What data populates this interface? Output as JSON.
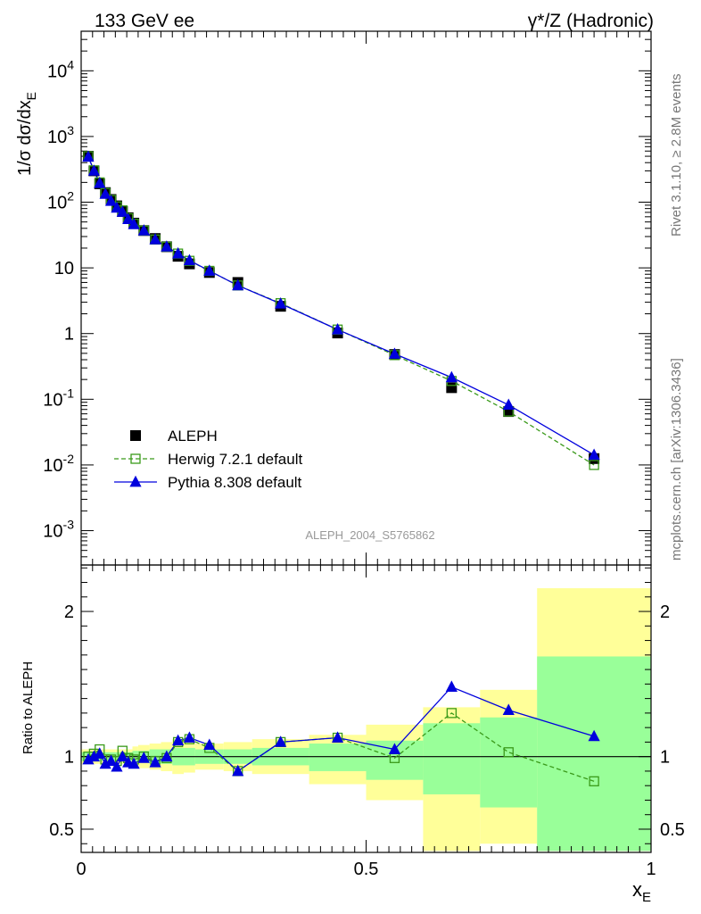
{
  "header": {
    "left": "133 GeV ee",
    "right": "γ*/Z (Hadronic)"
  },
  "side_labels": {
    "rivet": "Rivet 3.1.10, ≥ 2.8M events",
    "mcplots": "mcplots.cern.ch [arXiv:1306.3436]"
  },
  "watermark": "ALEPH_2004_S5765862",
  "colors": {
    "data": "#000000",
    "herwig": "#3a9a1a",
    "pythia": "#0000dd",
    "band_yellow": "#ffff99",
    "band_green": "#99ff99"
  },
  "chart_data": [
    {
      "type": "line",
      "name": "main-panel",
      "ylabel": "1/σ dσ/dx_E",
      "yscale": "log",
      "xlim": [
        0,
        1
      ],
      "ylim": [
        0.0003,
        40000
      ],
      "y_ticks": [
        {
          "v": 0.001,
          "label": "10^-3"
        },
        {
          "v": 0.01,
          "label": "10^-2"
        },
        {
          "v": 0.1,
          "label": "10^-1"
        },
        {
          "v": 1,
          "label": "1"
        },
        {
          "v": 10,
          "label": "10"
        },
        {
          "v": 100,
          "label": "10^2"
        },
        {
          "v": 1000,
          "label": "10^3"
        },
        {
          "v": 10000,
          "label": "10^4"
        }
      ],
      "legend": {
        "placement": "bottom-left",
        "entries": [
          "ALEPH",
          "Herwig 7.2.1 default",
          "Pythia 8.308 default"
        ]
      },
      "series": [
        {
          "name": "ALEPH",
          "style": "filled-square",
          "x": [
            0.0125,
            0.0225,
            0.0325,
            0.0425,
            0.0525,
            0.0625,
            0.0725,
            0.0825,
            0.0925,
            0.11,
            0.13,
            0.15,
            0.17,
            0.19,
            0.225,
            0.275,
            0.35,
            0.45,
            0.55,
            0.65,
            0.75,
            0.9
          ],
          "y": [
            500,
            300,
            190,
            140,
            110,
            88,
            72,
            58,
            48,
            37,
            28,
            21,
            15,
            11.5,
            8.5,
            6.0,
            2.6,
            1.02,
            0.48,
            0.15,
            0.065,
            0.0125
          ]
        },
        {
          "name": "Herwig 7.2.1 default",
          "style": "open-square-dashed",
          "x": [
            0.0125,
            0.0225,
            0.0325,
            0.0425,
            0.0525,
            0.0625,
            0.0725,
            0.0825,
            0.0925,
            0.11,
            0.13,
            0.15,
            0.17,
            0.19,
            0.225,
            0.275,
            0.35,
            0.45,
            0.55,
            0.65,
            0.75,
            0.9
          ],
          "y": [
            500,
            305,
            200,
            138,
            108,
            86,
            75,
            57,
            47,
            37,
            27,
            21,
            16.5,
            12.8,
            9.0,
            5.4,
            2.9,
            1.15,
            0.47,
            0.19,
            0.065,
            0.01
          ]
        },
        {
          "name": "Pythia 8.308 default",
          "style": "filled-triangle-solid",
          "x": [
            0.0125,
            0.0225,
            0.0325,
            0.0425,
            0.0525,
            0.0625,
            0.0725,
            0.0825,
            0.0925,
            0.11,
            0.13,
            0.15,
            0.17,
            0.19,
            0.225,
            0.275,
            0.35,
            0.45,
            0.55,
            0.65,
            0.75,
            0.9
          ],
          "y": [
            490,
            300,
            195,
            133,
            104,
            82,
            71,
            55,
            46,
            37,
            27,
            21,
            16.5,
            13.0,
            9.0,
            5.4,
            2.85,
            1.15,
            0.49,
            0.215,
            0.082,
            0.0142
          ]
        }
      ]
    },
    {
      "type": "line",
      "name": "ratio-panel",
      "ylabel": "Ratio to ALEPH",
      "xlabel": "x_E",
      "xlim": [
        0,
        1
      ],
      "ylim": [
        0.34,
        2.32
      ],
      "x_ticks": [
        {
          "v": 0,
          "label": "0"
        },
        {
          "v": 0.5,
          "label": "0.5"
        },
        {
          "v": 1,
          "label": "1"
        }
      ],
      "y_ticks": [
        {
          "v": 0.5,
          "label": "0.5"
        },
        {
          "v": 1,
          "label": "1"
        },
        {
          "v": 2,
          "label": "2"
        }
      ],
      "bands": {
        "edges": [
          0,
          0.02,
          0.03,
          0.04,
          0.05,
          0.06,
          0.07,
          0.08,
          0.09,
          0.1,
          0.12,
          0.14,
          0.16,
          0.18,
          0.2,
          0.25,
          0.3,
          0.4,
          0.5,
          0.6,
          0.7,
          0.8,
          1.0
        ],
        "yellow": [
          [
            0.95,
            1.05
          ],
          [
            0.95,
            1.05
          ],
          [
            0.95,
            1.05
          ],
          [
            0.95,
            1.05
          ],
          [
            0.95,
            1.05
          ],
          [
            0.95,
            1.05
          ],
          [
            0.95,
            1.05
          ],
          [
            0.95,
            1.05
          ],
          [
            0.93,
            1.07
          ],
          [
            0.92,
            1.08
          ],
          [
            0.91,
            1.09
          ],
          [
            0.9,
            1.1
          ],
          [
            0.88,
            1.12
          ],
          [
            0.89,
            1.11
          ],
          [
            0.91,
            1.09
          ],
          [
            0.9,
            1.1
          ],
          [
            0.88,
            1.12
          ],
          [
            0.81,
            1.15
          ],
          [
            0.7,
            1.22
          ],
          [
            0.35,
            1.34
          ],
          [
            0.4,
            1.46
          ],
          [
            0.35,
            2.16
          ]
        ],
        "green": [
          [
            0.97,
            1.03
          ],
          [
            0.97,
            1.03
          ],
          [
            0.97,
            1.03
          ],
          [
            0.97,
            1.03
          ],
          [
            0.97,
            1.03
          ],
          [
            0.97,
            1.03
          ],
          [
            0.97,
            1.03
          ],
          [
            0.97,
            1.03
          ],
          [
            0.96,
            1.04
          ],
          [
            0.96,
            1.04
          ],
          [
            0.95,
            1.05
          ],
          [
            0.95,
            1.05
          ],
          [
            0.94,
            1.06
          ],
          [
            0.94,
            1.06
          ],
          [
            0.95,
            1.05
          ],
          [
            0.95,
            1.05
          ],
          [
            0.94,
            1.06
          ],
          [
            0.9,
            1.09
          ],
          [
            0.84,
            1.11
          ],
          [
            0.74,
            1.23
          ],
          [
            0.65,
            1.27
          ],
          [
            0.35,
            1.69
          ]
        ]
      },
      "reference_line": 1,
      "series": [
        {
          "name": "Herwig 7.2.1 default",
          "style": "open-square-dashed",
          "x": [
            0.0125,
            0.0225,
            0.0325,
            0.0425,
            0.0525,
            0.0625,
            0.0725,
            0.0825,
            0.0925,
            0.11,
            0.13,
            0.15,
            0.17,
            0.19,
            0.225,
            0.275,
            0.35,
            0.45,
            0.55,
            0.65,
            0.75,
            0.9
          ],
          "y": [
            1.0,
            1.02,
            1.05,
            0.98,
            0.98,
            0.97,
            1.04,
            0.99,
            0.98,
            1.0,
            0.97,
            0.99,
            1.1,
            1.12,
            1.06,
            0.9,
            1.1,
            1.13,
            0.99,
            1.3,
            1.03,
            0.83
          ]
        },
        {
          "name": "Pythia 8.308 default",
          "style": "filled-triangle-solid",
          "x": [
            0.0125,
            0.0225,
            0.0325,
            0.0425,
            0.0525,
            0.0625,
            0.0725,
            0.0825,
            0.0925,
            0.11,
            0.13,
            0.15,
            0.17,
            0.19,
            0.225,
            0.275,
            0.35,
            0.45,
            0.55,
            0.65,
            0.75,
            0.9
          ],
          "y": [
            0.98,
            1.0,
            1.02,
            0.95,
            0.97,
            0.93,
            1.0,
            0.96,
            0.95,
            0.99,
            0.96,
            1.0,
            1.11,
            1.13,
            1.08,
            0.9,
            1.1,
            1.13,
            1.05,
            1.48,
            1.32,
            1.14
          ]
        }
      ]
    }
  ]
}
